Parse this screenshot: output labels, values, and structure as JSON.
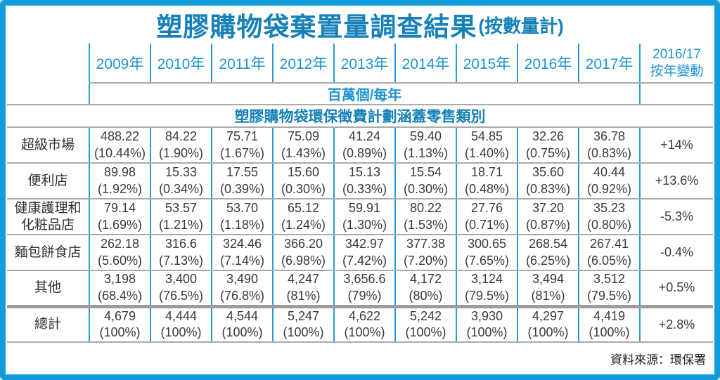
{
  "colors": {
    "frame_border": "#119CDC",
    "line_blue": "#2A9AD6",
    "line_gray": "#ABABAB",
    "divider_gray": "#9C9C9C",
    "title_text": "#1581B8",
    "header_text": "#1F93D3",
    "body_text": "#3A3A3A"
  },
  "title": {
    "main": "塑膠購物袋棄置量調查結果",
    "suffix": "(按數量計)"
  },
  "source_note": "資料來源：環保署",
  "chart_data": {
    "type": "table",
    "title": "塑膠購物袋棄置量調查結果(按數量計)",
    "unit_label": "百萬個/每年",
    "section_header": "塑膠購物袋環保徵費計劃涵蓋零售類別",
    "year_headers": [
      "2009年",
      "2010年",
      "2011年",
      "2012年",
      "2013年",
      "2014年",
      "2015年",
      "2016年",
      "2017年"
    ],
    "change_header": [
      "2016/17",
      "按年變動"
    ],
    "rows": [
      {
        "label": [
          "超級市場"
        ],
        "values": [
          "488.22",
          "84.22",
          "75.71",
          "75.09",
          "41.24",
          "59.40",
          "54.85",
          "32.26",
          "36.78"
        ],
        "percents": [
          "(10.44%)",
          "(1.90%)",
          "(1.67%)",
          "(1.43%)",
          "(0.89%)",
          "(1.13%)",
          "(1.40%)",
          "(0.75%)",
          "(0.83%)"
        ],
        "change": "+14%",
        "total": false
      },
      {
        "label": [
          "便利店"
        ],
        "values": [
          "89.98",
          "15.33",
          "17.55",
          "15.60",
          "15.13",
          "15.54",
          "18.71",
          "35.60",
          "40.44"
        ],
        "percents": [
          "(1.92%)",
          "(0.34%)",
          "(0.39%)",
          "(0.30%)",
          "(0.33%)",
          "(0.30%)",
          "(0.48%)",
          "(0.83%)",
          "(0.92%)"
        ],
        "change": "+13.6%",
        "total": false
      },
      {
        "label": [
          "健康護理和",
          "化粧品店"
        ],
        "values": [
          "79.14",
          "53.57",
          "53.70",
          "65.12",
          "59.91",
          "80.22",
          "27.76",
          "37.20",
          "35.23"
        ],
        "percents": [
          "(1.69%)",
          "(1.21%)",
          "(1.18%)",
          "(1.24%)",
          "(1.30%)",
          "(1.53%)",
          "(0.71%)",
          "(0.87%)",
          "(0.80%)"
        ],
        "change": "-5.3%",
        "total": false
      },
      {
        "label": [
          "麵包餅食店"
        ],
        "values": [
          "262.18",
          "316.6",
          "324.46",
          "366.20",
          "342.97",
          "377.38",
          "300.65",
          "268.54",
          "267.41"
        ],
        "percents": [
          "(5.60%)",
          "(7.13%)",
          "(7.14%)",
          "(6.98%)",
          "(7.42%)",
          "(7.20%)",
          "(7.65%)",
          "(6.25%)",
          "(6.05%)"
        ],
        "change": "-0.4%",
        "total": false
      },
      {
        "label": [
          "其他"
        ],
        "values": [
          "3,198",
          "3,400",
          "3,490",
          "4,247",
          "3,656.6",
          "4,172",
          "3,124",
          "3,494",
          "3,512"
        ],
        "percents": [
          "(68.4%)",
          "(76.5%)",
          "(76.8%)",
          "(81%)",
          "(79%)",
          "(80%)",
          "(79.5%)",
          "(81%)",
          "(79.5%)"
        ],
        "change": "+0.5%",
        "total": false
      },
      {
        "label": [
          "總計"
        ],
        "values": [
          "4,679",
          "4,444",
          "4,544",
          "5,247",
          "4,622",
          "5,242",
          "3,930",
          "4,297",
          "4,419"
        ],
        "percents": [
          "(100%)",
          "(100%)",
          "(100%)",
          "(100%)",
          "(100%)",
          "(100%)",
          "(100%)",
          "(100%)",
          "(100%)"
        ],
        "change": "+2.8%",
        "total": true
      }
    ]
  }
}
